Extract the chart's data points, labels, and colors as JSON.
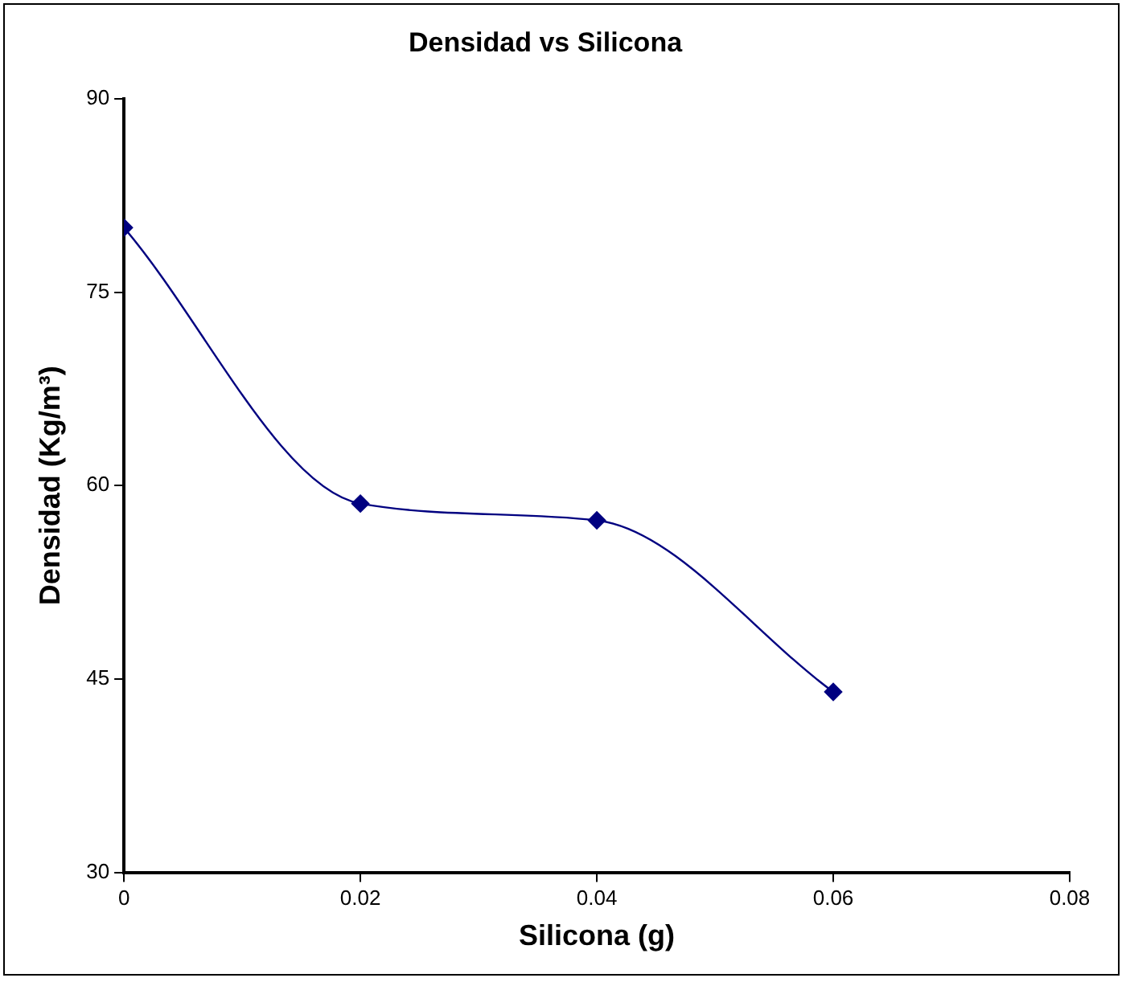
{
  "chart_data": {
    "type": "line",
    "title": "Densidad vs Silicona",
    "xlabel": "Silicona (g)",
    "ylabel": "Densidad (Kg/m³)",
    "x": [
      0,
      0.02,
      0.04,
      0.06
    ],
    "series": [
      {
        "color": "#000080",
        "values": [
          80,
          58.6,
          57.3,
          44
        ]
      }
    ],
    "xlim": [
      0,
      0.08
    ],
    "xticks": [
      0,
      0.02,
      0.04,
      0.06,
      0.08
    ],
    "ylim": [
      30,
      90
    ],
    "yticks": [
      30,
      45,
      60,
      75,
      90
    ],
    "grid": false,
    "legend": false,
    "marker": "diamond",
    "line_style": "solid"
  }
}
